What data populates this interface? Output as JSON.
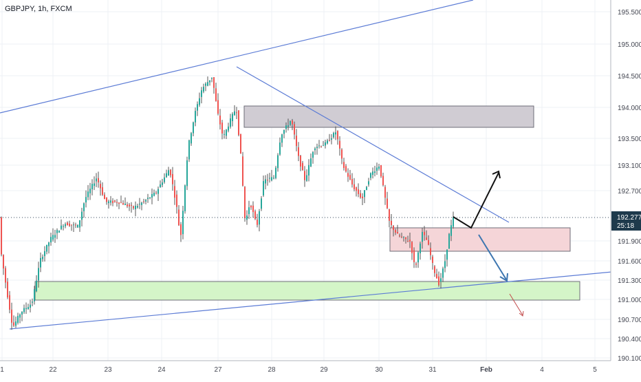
{
  "chart_data": {
    "type": "candlestick",
    "title": "GBPJPY, 1h, FXCM",
    "symbol": "GBPJPY",
    "timeframe": "1h",
    "source": "FXCM",
    "x_ticks": [
      "1",
      "22",
      "23",
      "24",
      "27",
      "28",
      "29",
      "30",
      "31",
      "Feb",
      "4",
      "5"
    ],
    "x_ticks_bold": [
      "Feb"
    ],
    "y_ticks": [
      195.5,
      195.0,
      194.5,
      194.0,
      193.5,
      193.1,
      192.7,
      192.277,
      191.9,
      191.6,
      191.3,
      191.0,
      190.7,
      190.4,
      190.1
    ],
    "ylim": [
      190.05,
      195.7
    ],
    "current_price": {
      "label": "192.277",
      "value": 192.277,
      "countdown": "25:18",
      "color": "#1e3a4c"
    },
    "colors": {
      "bull": "#26a69a",
      "bear": "#ef5350",
      "wick": "#444444",
      "trendline": "#5b7bd5",
      "grid": "#edf0f6",
      "axis_text": "#434651",
      "supply_zone": "#d0ccd3",
      "pullback_zone": "#f5d5d8",
      "demand_zone": "#d4f5c8",
      "arrow_up": "#111111",
      "arrow_down": "#3d76b0"
    }
  }
}
